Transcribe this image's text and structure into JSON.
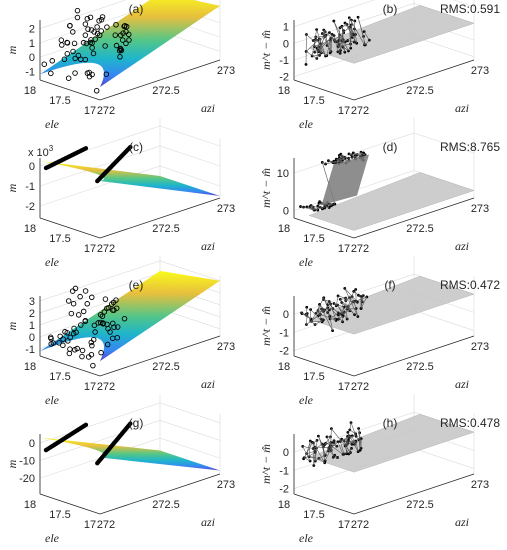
{
  "chart_data": [
    {
      "type": "surface",
      "label": "(a)",
      "zlabel": "m",
      "xlabel": "azi",
      "ylabel": "ele",
      "zticks": [
        "2",
        "1",
        "0",
        "-1"
      ],
      "zlim": [
        -1.6,
        2.6
      ],
      "azi_ticks": [
        "272",
        "272.5",
        "273"
      ],
      "ele_ticks": [
        "18",
        "17.5",
        "17"
      ],
      "surface_fn": "linear",
      "surface_range": [
        -1.2,
        2.2
      ],
      "points_style": "open-circles",
      "points_range": [
        -1.3,
        2.4
      ],
      "exponent": ""
    },
    {
      "type": "scatter3d",
      "label": "(b)",
      "rms": "RMS:0.591",
      "zlabel": "m^t − m̂",
      "xlabel": "azi",
      "ylabel": "ele",
      "zticks": [
        "1",
        "0",
        "-1",
        "-2"
      ],
      "zlim": [
        -2.2,
        1.4
      ],
      "azi_ticks": [
        "272",
        "272.5",
        "273"
      ],
      "ele_ticks": [
        "18",
        "17.5",
        "17"
      ],
      "residual_amp": 1.9,
      "residual_style": "noise"
    },
    {
      "type": "surface",
      "label": "(c)",
      "zlabel": "m",
      "xlabel": "azi",
      "ylabel": "ele",
      "zticks": [
        "0",
        "-1",
        "-2"
      ],
      "zlim": [
        -2.6,
        0.4
      ],
      "azi_ticks": [
        "272",
        "272.5",
        "273"
      ],
      "ele_ticks": [
        "18",
        "17.5",
        "17"
      ],
      "surface_fn": "concave",
      "surface_range": [
        -2.5,
        0.25
      ],
      "points_style": "filled-lines",
      "points_range": [
        0.0,
        0.25
      ],
      "exponent": "x 10"
    },
    {
      "type": "scatter3d",
      "label": "(d)",
      "rms": "RMS:8.765",
      "zlabel": "m^t − m̂",
      "xlabel": "azi",
      "ylabel": "ele",
      "zticks": [
        "10",
        "0"
      ],
      "zlim": [
        -2,
        14
      ],
      "azi_ticks": [
        "272",
        "272.5",
        "273"
      ],
      "ele_ticks": [
        "18",
        "17.5",
        "17"
      ],
      "residual_amp": 12,
      "residual_style": "step"
    },
    {
      "type": "surface",
      "label": "(e)",
      "zlabel": "m",
      "xlabel": "azi",
      "ylabel": "ele",
      "zticks": [
        "3",
        "2",
        "1",
        "0",
        "-1"
      ],
      "zlim": [
        -1.6,
        3.4
      ],
      "azi_ticks": [
        "272",
        "272.5",
        "273"
      ],
      "ele_ticks": [
        "18",
        "17.5",
        "17"
      ],
      "surface_fn": "curved",
      "surface_range": [
        -1.2,
        3.0
      ],
      "points_style": "open-circles",
      "points_range": [
        -1.3,
        3.0
      ],
      "exponent": ""
    },
    {
      "type": "scatter3d",
      "label": "(f)",
      "rms": "RMS:0.472",
      "zlabel": "m^t − m̂",
      "xlabel": "azi",
      "ylabel": "ele",
      "zticks": [
        "0",
        "-1",
        "-2"
      ],
      "zlim": [
        -2.3,
        1.0
      ],
      "azi_ticks": [
        "272",
        "272.5",
        "273"
      ],
      "ele_ticks": [
        "18",
        "17.5",
        "17"
      ],
      "residual_amp": 1.4,
      "residual_style": "noise"
    },
    {
      "type": "surface",
      "label": "(g)",
      "zlabel": "m",
      "xlabel": "azi",
      "ylabel": "ele",
      "zticks": [
        "0",
        "-10",
        "-20"
      ],
      "zlim": [
        -29,
        5
      ],
      "azi_ticks": [
        "272",
        "272.5",
        "273"
      ],
      "ele_ticks": [
        "18",
        "17.5",
        "17"
      ],
      "surface_fn": "concave",
      "surface_range": [
        -27,
        3
      ],
      "points_style": "filled-lines",
      "points_range": [
        -3,
        3
      ],
      "exponent": ""
    },
    {
      "type": "scatter3d",
      "label": "(h)",
      "rms": "RMS:0.478",
      "zlabel": "m^t − m̂",
      "xlabel": "azi",
      "ylabel": "ele",
      "zticks": [
        "0",
        "-1",
        "-2"
      ],
      "zlim": [
        -2.3,
        1.0
      ],
      "azi_ticks": [
        "272",
        "272.5",
        "273"
      ],
      "ele_ticks": [
        "18",
        "17.5",
        "17"
      ],
      "residual_amp": 1.4,
      "residual_style": "noise"
    }
  ],
  "exponent_power": "3"
}
